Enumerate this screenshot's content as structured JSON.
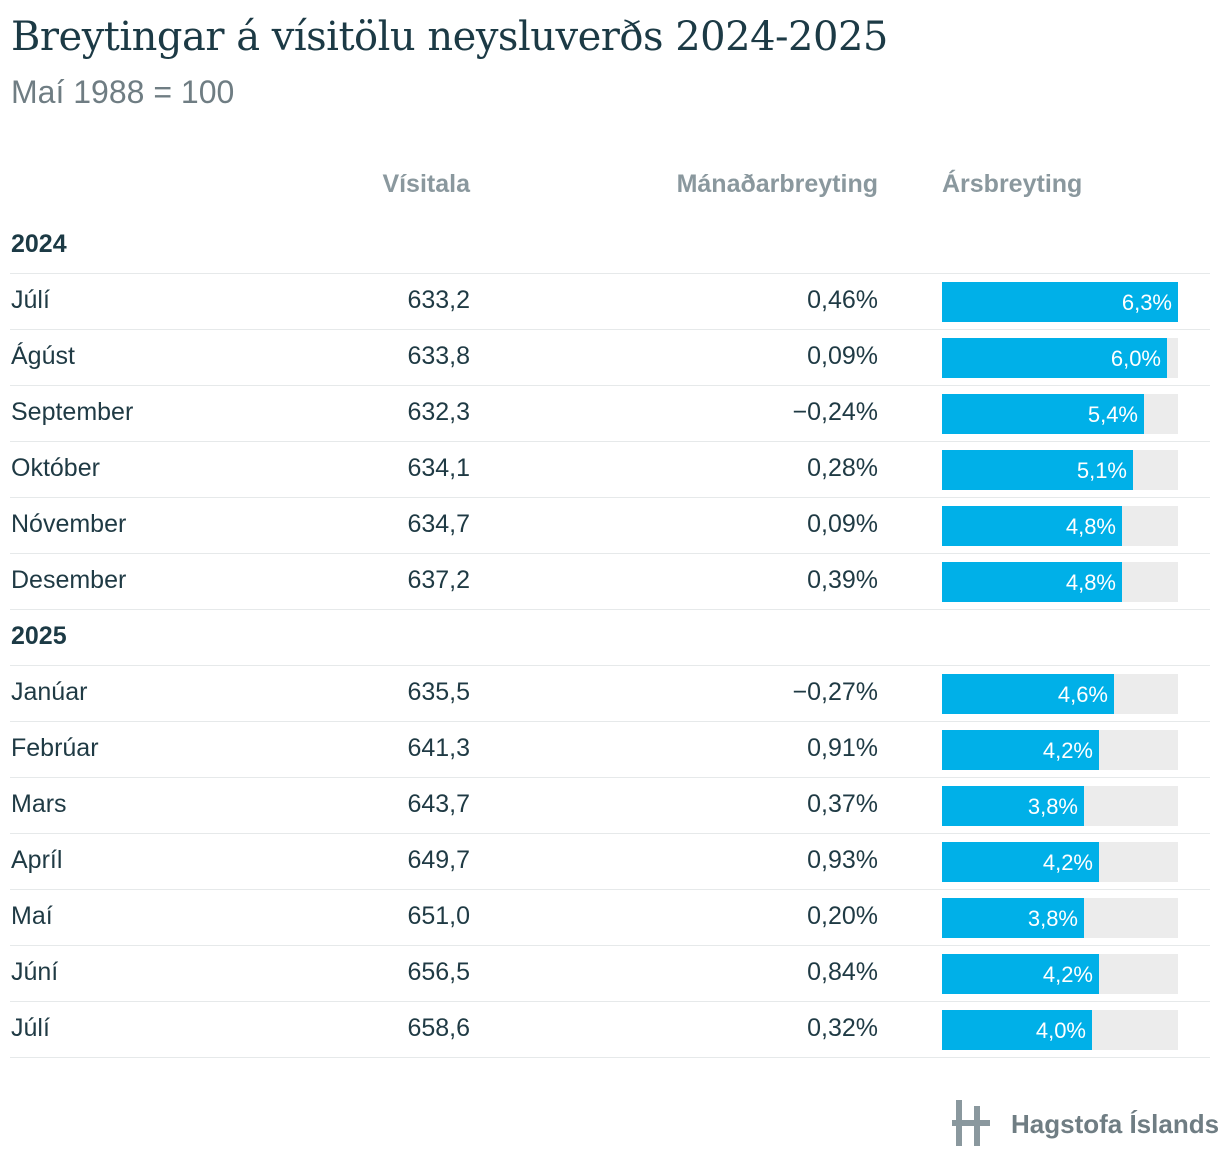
{
  "chart_data": {
    "type": "table",
    "title": "Breytingar á vísitölu neysluverðs 2024-2025",
    "subtitle": "Maí 1988 = 100",
    "columns": [
      "Vísitala",
      "Mánaðarbreyting",
      "Ársbreyting"
    ],
    "bar_max": 6.3,
    "bar_color": "#00b0e8",
    "track_color": "#ececec",
    "groups": [
      {
        "label": "2024",
        "rows": [
          {
            "month": "Júlí",
            "index": "633,2",
            "monthly": "0,46%",
            "annual": 6.3,
            "annual_label": "6,3%"
          },
          {
            "month": "Ágúst",
            "index": "633,8",
            "monthly": "0,09%",
            "annual": 6.0,
            "annual_label": "6,0%"
          },
          {
            "month": "September",
            "index": "632,3",
            "monthly": "−0,24%",
            "annual": 5.4,
            "annual_label": "5,4%"
          },
          {
            "month": "Október",
            "index": "634,1",
            "monthly": "0,28%",
            "annual": 5.1,
            "annual_label": "5,1%"
          },
          {
            "month": "Nóvember",
            "index": "634,7",
            "monthly": "0,09%",
            "annual": 4.8,
            "annual_label": "4,8%"
          },
          {
            "month": "Desember",
            "index": "637,2",
            "monthly": "0,39%",
            "annual": 4.8,
            "annual_label": "4,8%"
          }
        ]
      },
      {
        "label": "2025",
        "rows": [
          {
            "month": "Janúar",
            "index": "635,5",
            "monthly": "−0,27%",
            "annual": 4.6,
            "annual_label": "4,6%"
          },
          {
            "month": "Febrúar",
            "index": "641,3",
            "monthly": "0,91%",
            "annual": 4.2,
            "annual_label": "4,2%"
          },
          {
            "month": "Mars",
            "index": "643,7",
            "monthly": "0,37%",
            "annual": 3.8,
            "annual_label": "3,8%"
          },
          {
            "month": "Apríl",
            "index": "649,7",
            "monthly": "0,93%",
            "annual": 4.2,
            "annual_label": "4,2%"
          },
          {
            "month": "Maí",
            "index": "651,0",
            "monthly": "0,20%",
            "annual": 3.8,
            "annual_label": "3,8%"
          },
          {
            "month": "Júní",
            "index": "656,5",
            "monthly": "0,84%",
            "annual": 4.2,
            "annual_label": "4,2%"
          },
          {
            "month": "Júlí",
            "index": "658,6",
            "monthly": "0,32%",
            "annual": 4.0,
            "annual_label": "4,0%"
          }
        ]
      }
    ]
  },
  "footer": {
    "logo_icon": "hagstofa-logo-icon",
    "logo_text": "Hagstofa Íslands"
  }
}
